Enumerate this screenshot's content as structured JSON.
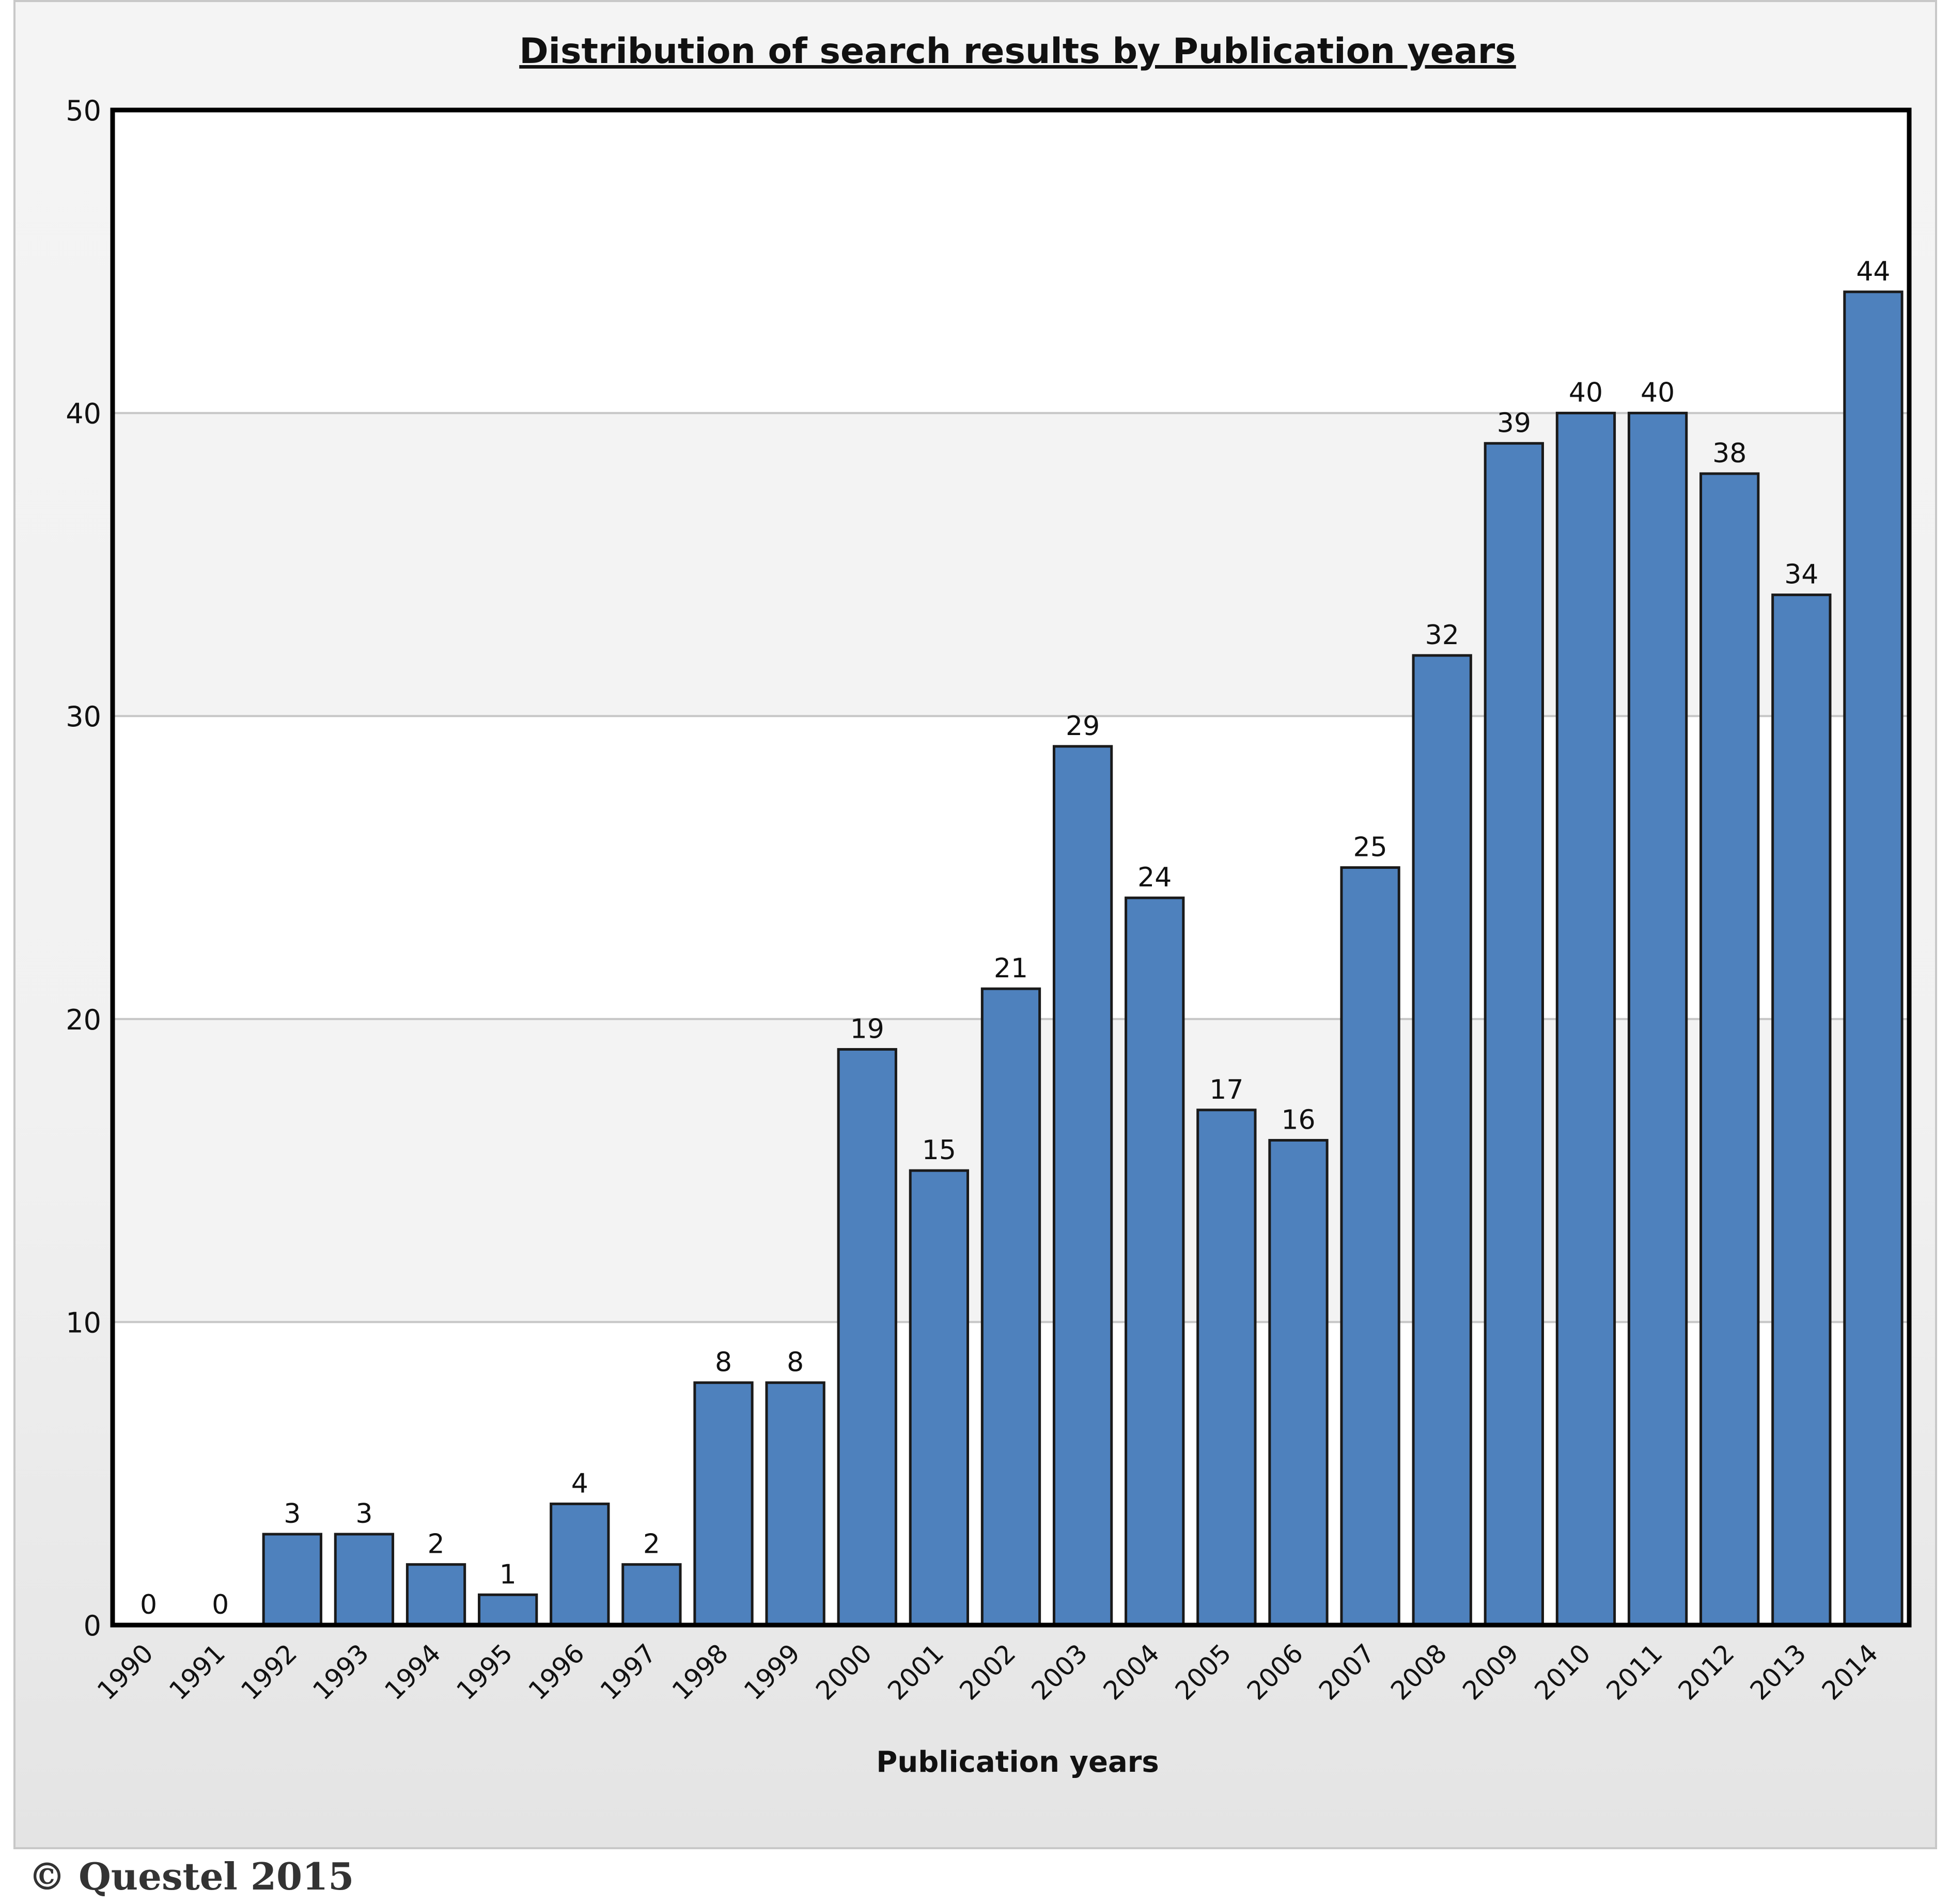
{
  "chart_data": {
    "type": "bar",
    "title": "Distribution of search results by Publication years",
    "xlabel": "Publication years",
    "ylabel": "",
    "categories": [
      "1990",
      "1991",
      "1992",
      "1993",
      "1994",
      "1995",
      "1996",
      "1997",
      "1998",
      "1999",
      "2000",
      "2001",
      "2002",
      "2003",
      "2004",
      "2005",
      "2006",
      "2007",
      "2008",
      "2009",
      "2010",
      "2011",
      "2012",
      "2013",
      "2014"
    ],
    "values": [
      0,
      0,
      3,
      3,
      2,
      1,
      4,
      2,
      8,
      8,
      19,
      15,
      21,
      29,
      24,
      17,
      16,
      25,
      32,
      39,
      40,
      40,
      38,
      34,
      44
    ],
    "ylim": [
      0,
      50
    ],
    "yticks": [
      0,
      10,
      20,
      30,
      40,
      50
    ],
    "grid": true,
    "data_labels": true,
    "colors": {
      "bar": "#4e81bd",
      "bar_edge": "#1a1a1a",
      "gridline": "#c6c6c6",
      "band": "#f3f3f3"
    }
  },
  "copyright": "© Questel 2015"
}
